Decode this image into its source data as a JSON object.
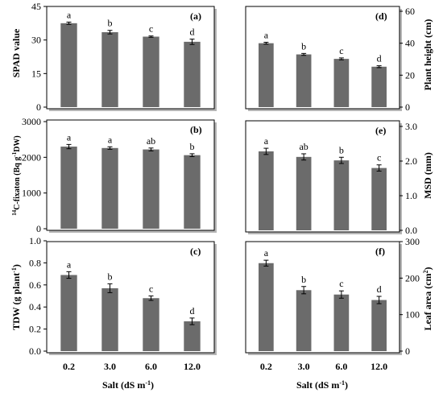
{
  "chart_data": [
    {
      "panel": "(a)",
      "type": "bar",
      "side": "left",
      "categories": [
        "0.2",
        "3.0",
        "6.0",
        "12.0"
      ],
      "values": [
        37.5,
        33.5,
        31.5,
        29.2
      ],
      "errors": [
        0.5,
        0.8,
        0.3,
        1.2
      ],
      "letters": [
        "a",
        "b",
        "c",
        "d"
      ],
      "ylabel": "SPAD value",
      "ylim": [
        0,
        45
      ],
      "yticks": [
        "0",
        "15",
        "30",
        "45"
      ],
      "ytick_values": [
        0,
        15,
        30,
        45
      ]
    },
    {
      "panel": "(b)",
      "type": "bar",
      "side": "left",
      "categories": [
        "0.2",
        "3.0",
        "6.0",
        "12.0"
      ],
      "values": [
        2300,
        2260,
        2220,
        2060
      ],
      "errors": [
        60,
        35,
        40,
        40
      ],
      "letters": [
        "a",
        "a",
        "ab",
        "b"
      ],
      "ylabel": "14C-fixaton (Bq g-1DW)",
      "ylim": [
        0,
        3000
      ],
      "yticks": [
        "0",
        "1000",
        "2000",
        "3000"
      ],
      "ytick_values": [
        0,
        1000,
        2000,
        3000
      ]
    },
    {
      "panel": "(c)",
      "type": "bar",
      "side": "left",
      "categories": [
        "0.2",
        "3.0",
        "6.0",
        "12.0"
      ],
      "values": [
        0.69,
        0.57,
        0.48,
        0.27
      ],
      "errors": [
        0.03,
        0.04,
        0.02,
        0.03
      ],
      "letters": [
        "a",
        "b",
        "c",
        "d"
      ],
      "ylabel": "TDW (g plant-1)",
      "ylim": [
        0,
        1.0
      ],
      "yticks": [
        "0.0",
        "0.2",
        "0.4",
        "0.6",
        "0.8",
        "1.0"
      ],
      "ytick_values": [
        0,
        0.2,
        0.4,
        0.6,
        0.8,
        1.0
      ]
    },
    {
      "panel": "(d)",
      "type": "bar",
      "side": "right",
      "categories": [
        "0.2",
        "3.0",
        "6.0",
        "12.0"
      ],
      "values": [
        40,
        33,
        30.2,
        25.3
      ],
      "errors": [
        0.6,
        0.6,
        0.6,
        0.6
      ],
      "letters": [
        "a",
        "b",
        "c",
        "d"
      ],
      "ylabel": "Plant height (cm)",
      "ylim": [
        0,
        60
      ],
      "yticks": [
        "0",
        "20",
        "40",
        "60"
      ],
      "ytick_values": [
        0,
        20,
        40,
        60
      ]
    },
    {
      "panel": "(e)",
      "type": "bar",
      "side": "right",
      "categories": [
        "0.2",
        "3.0",
        "6.0",
        "12.0"
      ],
      "values": [
        2.28,
        2.12,
        2.02,
        1.8
      ],
      "errors": [
        0.09,
        0.09,
        0.09,
        0.09
      ],
      "letters": [
        "a",
        "ab",
        "b",
        "c"
      ],
      "ylabel": "MSD (mm)",
      "ylim": [
        0,
        3.0
      ],
      "yticks": [
        "0.0",
        "1.0",
        "2.0",
        "3.0"
      ],
      "ytick_values": [
        0,
        1,
        2,
        3
      ]
    },
    {
      "panel": "(f)",
      "type": "bar",
      "side": "right",
      "categories": [
        "0.2",
        "3.0",
        "6.0",
        "12.0"
      ],
      "values": [
        241,
        167,
        155,
        140
      ],
      "errors": [
        8,
        10,
        10,
        10
      ],
      "letters": [
        "a",
        "b",
        "c",
        "d"
      ],
      "ylabel": "Leaf area (cm2)",
      "ylim": [
        0,
        300
      ],
      "yticks": [
        "0",
        "100",
        "200",
        "300"
      ],
      "ytick_values": [
        0,
        100,
        200,
        300
      ]
    }
  ],
  "xlabel": "Salt (dS m-1)",
  "colors": {
    "bar": "#6b6b6b",
    "shadow": "#b5b5b5",
    "frame": "#000000"
  }
}
